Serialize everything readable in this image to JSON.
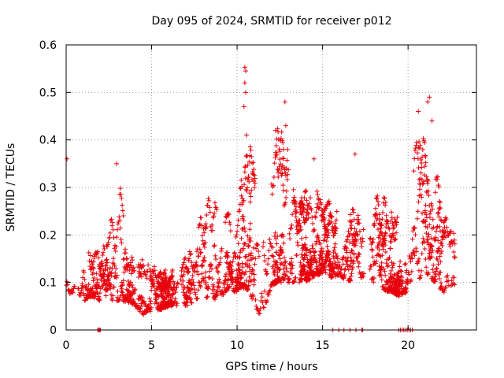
{
  "chart_data": {
    "type": "scatter",
    "title": "Day 095 of 2024, SRMTID for receiver p012",
    "xlabel": "GPS time / hours",
    "ylabel": "SRMTID / TECUs",
    "xlim": [
      0,
      24
    ],
    "ylim": [
      0,
      0.6
    ],
    "x_ticks": [
      0,
      5,
      10,
      15,
      20
    ],
    "x_tick_labels": [
      "0",
      "5",
      "10",
      "15",
      "20"
    ],
    "y_ticks": [
      0,
      0.1,
      0.2,
      0.3,
      0.4,
      0.5,
      0.6
    ],
    "y_tick_labels": [
      "0",
      "0.1",
      "0.2",
      "0.3",
      "0.4",
      "0.5",
      "0.6"
    ],
    "grid": true,
    "marker": "plus",
    "series_color": "#e8000b",
    "envelope": {
      "description": "approximate local value range of the point cloud, per hour (data units)",
      "x": [
        0,
        0.5,
        1,
        1.5,
        2,
        2.5,
        3,
        3.5,
        4,
        4.5,
        5,
        5.5,
        6,
        6.5,
        7,
        7.5,
        8,
        8.5,
        9,
        9.5,
        10,
        10.5,
        11,
        11.5,
        12,
        12.5,
        13,
        13.5,
        14,
        14.5,
        15,
        15.5,
        16,
        16.5,
        17,
        17.5,
        18,
        18.5,
        19,
        19.5,
        20,
        20.5,
        21,
        21.5,
        22,
        22.5
      ],
      "low": [
        0.07,
        0.08,
        0.06,
        0.07,
        0.06,
        0.05,
        0.06,
        0.06,
        0.05,
        0.03,
        0.04,
        0.04,
        0.05,
        0.05,
        0.05,
        0.05,
        0.05,
        0.06,
        0.07,
        0.08,
        0.08,
        0.09,
        0.04,
        0.03,
        0.09,
        0.1,
        0.1,
        0.1,
        0.1,
        0.11,
        0.12,
        0.11,
        0.11,
        0.1,
        0.11,
        0.11,
        0.1,
        0.08,
        0.08,
        0.07,
        0.08,
        0.1,
        0.12,
        0.1,
        0.08,
        0.07
      ],
      "high": [
        0.36,
        0.27,
        0.26,
        0.22,
        0.22,
        0.26,
        0.35,
        0.2,
        0.17,
        0.15,
        0.15,
        0.14,
        0.14,
        0.15,
        0.17,
        0.2,
        0.3,
        0.28,
        0.25,
        0.27,
        0.32,
        0.55,
        0.33,
        0.28,
        0.42,
        0.48,
        0.4,
        0.33,
        0.3,
        0.36,
        0.25,
        0.28,
        0.27,
        0.37,
        0.34,
        0.3,
        0.33,
        0.29,
        0.26,
        0.25,
        0.29,
        0.46,
        0.49,
        0.42,
        0.3,
        0.22
      ],
      "point_count": 2600
    },
    "peaks": [
      {
        "x": 0.05,
        "y": 0.36
      },
      {
        "x": 2.95,
        "y": 0.35
      },
      {
        "x": 10.45,
        "y": 0.553
      },
      {
        "x": 10.5,
        "y": 0.545
      },
      {
        "x": 10.45,
        "y": 0.52
      },
      {
        "x": 10.5,
        "y": 0.5
      },
      {
        "x": 10.4,
        "y": 0.47
      },
      {
        "x": 10.55,
        "y": 0.41
      },
      {
        "x": 12.25,
        "y": 0.42
      },
      {
        "x": 12.8,
        "y": 0.48
      },
      {
        "x": 12.85,
        "y": 0.43
      },
      {
        "x": 14.5,
        "y": 0.36
      },
      {
        "x": 16.9,
        "y": 0.37
      },
      {
        "x": 20.6,
        "y": 0.46
      },
      {
        "x": 21.15,
        "y": 0.48
      },
      {
        "x": 21.25,
        "y": 0.49
      },
      {
        "x": 21.4,
        "y": 0.44
      }
    ],
    "zero_points_x": [
      1.85,
      1.9,
      1.95,
      2.0,
      15.6,
      15.95,
      16.25,
      16.6,
      16.95,
      17.3,
      17.35,
      19.45,
      19.55,
      19.65,
      19.75,
      19.85,
      19.95,
      20.05,
      20.15,
      20.25
    ]
  }
}
